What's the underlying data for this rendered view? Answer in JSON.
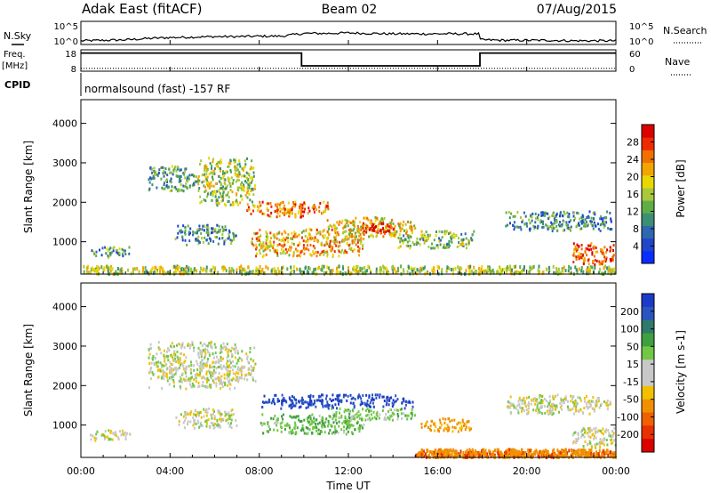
{
  "header": {
    "station": "Adak East (fitACF)",
    "beam": "Beam 02",
    "date": "07/Aug/2015"
  },
  "params": {
    "nsky_label": "N.Sky",
    "nsearch_label": "N.Search",
    "freq_label_1": "Freq.",
    "freq_label_2": "[MHz]",
    "nave_label": "Nave",
    "cpid_label": "CPID",
    "cpid_text": "normalsound (fast) -157 RF",
    "noise_top_left": "10^5",
    "noise_bottom_left": "10^0",
    "noise_top_right": "10^5",
    "noise_bottom_right": "10^0",
    "freq_top": "18",
    "freq_bottom": "8",
    "nave_top": "60",
    "nave_bottom": "0"
  },
  "chart_data": [
    {
      "type": "line",
      "name": "noise",
      "x_hours": [
        0,
        1,
        2,
        3,
        4,
        5,
        6,
        7,
        8,
        9,
        10,
        11,
        12,
        13,
        14,
        15,
        16,
        17,
        18,
        19,
        20,
        21,
        22,
        23,
        24
      ],
      "nsky_log10": [
        0.8,
        0.9,
        1.0,
        1.3,
        1.5,
        1.6,
        1.7,
        1.7,
        1.8,
        1.8,
        2.4,
        2.4,
        2.5,
        2.4,
        2.3,
        2.2,
        2.1,
        2.1,
        1.0,
        0.9,
        0.9,
        0.9,
        0.8,
        0.8,
        0.8
      ],
      "ylim": [
        0,
        5
      ]
    },
    {
      "type": "line",
      "name": "frequency-nave",
      "freq_segments": [
        {
          "from": 0,
          "to": 9.9,
          "value": 16.5
        },
        {
          "from": 9.9,
          "to": 17.9,
          "value": 10.5
        },
        {
          "from": 17.9,
          "to": 24,
          "value": 16.5
        }
      ],
      "nave_value": 8,
      "freq_ylim": [
        8,
        18
      ],
      "nave_ylim": [
        0,
        60
      ]
    },
    {
      "type": "heatmap",
      "name": "power",
      "ylabel": "Slant Range [km]",
      "colorbar_label": "Power [dB]",
      "colorbar_ticks": [
        "4",
        "8",
        "12",
        "16",
        "20",
        "24",
        "28"
      ],
      "colorbar_colors": [
        "#0a2dff",
        "#1f45c8",
        "#2f68b0",
        "#3b8f75",
        "#5fae45",
        "#a9c83a",
        "#e8d800",
        "#f2a400",
        "#f27000",
        "#ee2a00",
        "#dd0000"
      ],
      "yticks": [
        1000,
        2000,
        3000,
        4000
      ],
      "ylim": [
        180,
        4600
      ],
      "xticks": [
        "00:00",
        "04:00",
        "08:00",
        "12:00",
        "16:00",
        "20:00",
        "00:00"
      ],
      "xlim_hours": [
        0,
        24
      ],
      "echo_regions": [
        {
          "t0": 0.4,
          "t1": 2.2,
          "r0": 620,
          "r1": 900,
          "level": 0.35
        },
        {
          "t0": 3.0,
          "t1": 5.2,
          "r0": 2300,
          "r1": 2950,
          "level": 0.35
        },
        {
          "t0": 5.2,
          "t1": 7.8,
          "r0": 1950,
          "r1": 3150,
          "level": 0.5
        },
        {
          "t0": 4.2,
          "t1": 7.0,
          "r0": 950,
          "r1": 1450,
          "level": 0.3
        },
        {
          "t0": 7.4,
          "t1": 11.2,
          "r0": 1650,
          "r1": 2050,
          "level": 0.75
        },
        {
          "t0": 7.6,
          "t1": 12.8,
          "r0": 650,
          "r1": 1350,
          "level": 0.65
        },
        {
          "t0": 11.0,
          "t1": 15.0,
          "r0": 1150,
          "r1": 1650,
          "level": 0.6
        },
        {
          "t0": 12.6,
          "t1": 14.2,
          "r0": 1200,
          "r1": 1500,
          "level": 0.95
        },
        {
          "t0": 14.2,
          "t1": 17.6,
          "r0": 850,
          "r1": 1300,
          "level": 0.45
        },
        {
          "t0": 19.0,
          "t1": 23.8,
          "r0": 1300,
          "r1": 1800,
          "level": 0.3
        },
        {
          "t0": 22.0,
          "t1": 24.0,
          "r0": 450,
          "r1": 1000,
          "level": 0.85
        },
        {
          "t0": 0.0,
          "t1": 24.0,
          "r0": 180,
          "r1": 420,
          "level": 0.5
        }
      ]
    },
    {
      "type": "heatmap",
      "name": "velocity",
      "ylabel": "Slant Range [km]",
      "xlabel": "Time UT",
      "colorbar_label": "Velocity [m s-1]",
      "colorbar_ticks": [
        "200",
        "100",
        "50",
        "15",
        "-15",
        "-50",
        "-100",
        "-200"
      ],
      "colorbar_colors": [
        "#1b3ac8",
        "#2a55c0",
        "#2f7a6a",
        "#3fa040",
        "#70c845",
        "#c8c8c8",
        "#c8c8c8",
        "#f2c000",
        "#f09000",
        "#ee6000",
        "#e83000",
        "#dd0000"
      ],
      "yticks": [
        1000,
        2000,
        3000,
        4000
      ],
      "ylim": [
        180,
        4600
      ],
      "xticks": [
        "00:00",
        "04:00",
        "08:00",
        "12:00",
        "16:00",
        "20:00",
        "00:00"
      ],
      "xlim_hours": [
        0,
        24
      ],
      "echo_regions": [
        {
          "t0": 0.4,
          "t1": 2.2,
          "r0": 620,
          "r1": 900,
          "v": 0
        },
        {
          "t0": 3.0,
          "t1": 7.8,
          "r0": 1950,
          "r1": 3150,
          "v": 0
        },
        {
          "t0": 4.2,
          "t1": 7.0,
          "r0": 950,
          "r1": 1450,
          "v": 0
        },
        {
          "t0": 8.0,
          "t1": 15.0,
          "r0": 1450,
          "r1": 1800,
          "v": 150
        },
        {
          "t0": 8.0,
          "t1": 12.8,
          "r0": 800,
          "r1": 1300,
          "v": 40
        },
        {
          "t0": 11.0,
          "t1": 15.0,
          "r0": 1150,
          "r1": 1450,
          "v": 30
        },
        {
          "t0": 15.2,
          "t1": 17.6,
          "r0": 850,
          "r1": 1200,
          "v": -70
        },
        {
          "t0": 19.0,
          "t1": 23.8,
          "r0": 1300,
          "r1": 1800,
          "v": 0
        },
        {
          "t0": 22.0,
          "t1": 24.0,
          "r0": 450,
          "r1": 1000,
          "v": 0
        },
        {
          "t0": 15.0,
          "t1": 24.0,
          "r0": 180,
          "r1": 420,
          "v": -80
        }
      ]
    }
  ]
}
